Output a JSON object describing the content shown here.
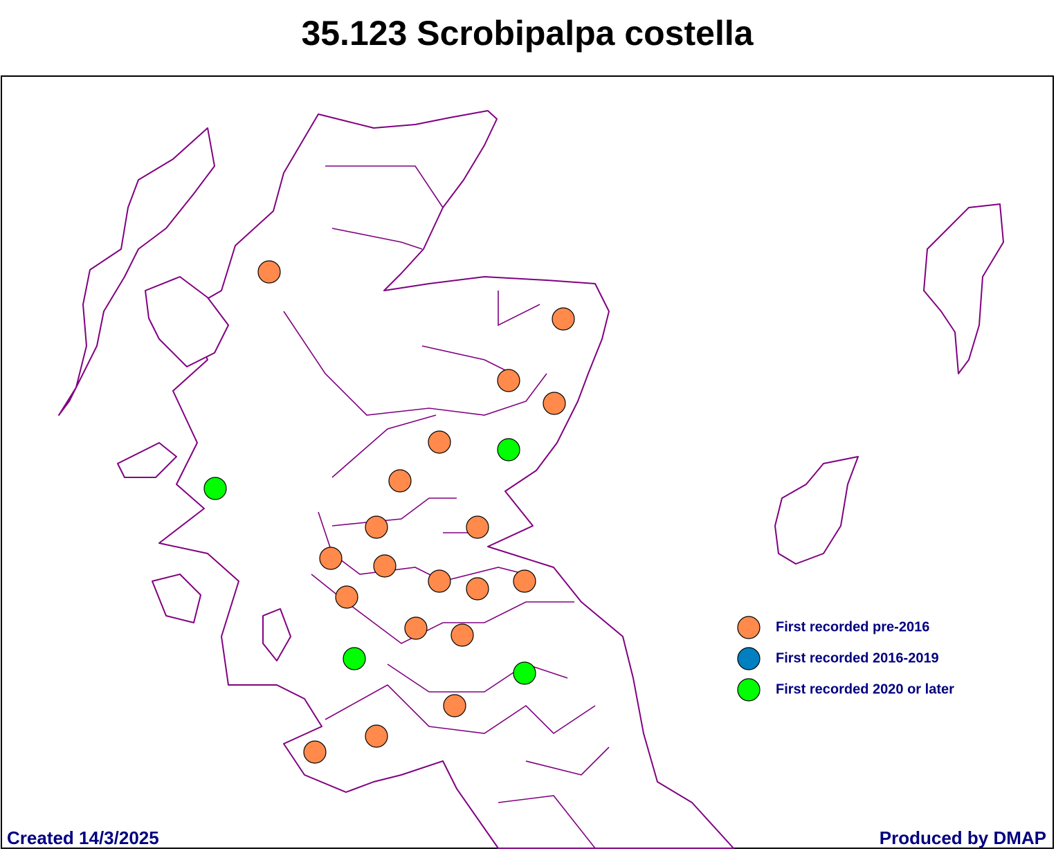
{
  "title": "35.123 Scrobipalpa costella",
  "legend": [
    {
      "label": "First recorded pre-2016",
      "color": "#ff8a4c"
    },
    {
      "label": "First recorded 2016-2019",
      "color": "#0080c0"
    },
    {
      "label": "First recorded 2020 or later",
      "color": "#00ff00"
    }
  ],
  "footer": {
    "created": "Created 14/3/2025",
    "produced": "Produced by DMAP"
  }
}
